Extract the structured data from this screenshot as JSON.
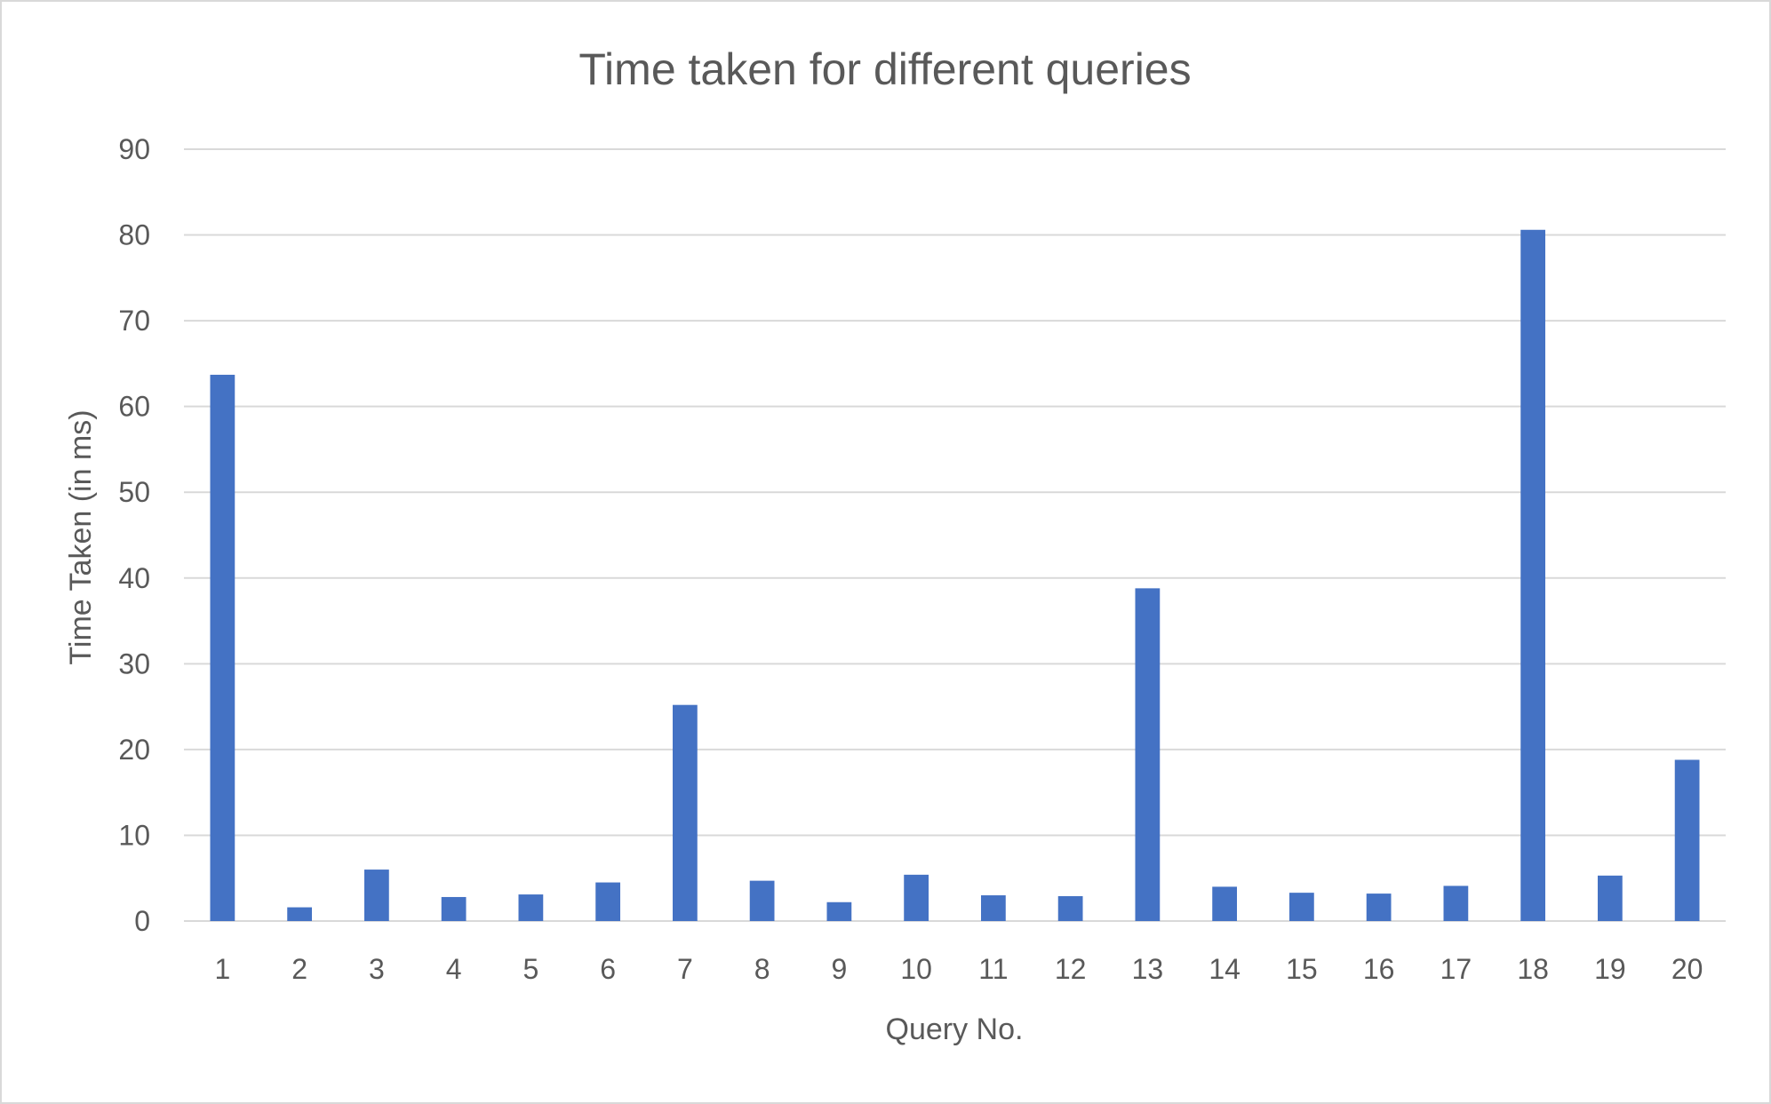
{
  "chart_data": {
    "type": "bar",
    "title": "Time taken for different queries",
    "xlabel": "Query No.",
    "ylabel": "Time Taken (in ms)",
    "categories": [
      "1",
      "2",
      "3",
      "4",
      "5",
      "6",
      "7",
      "8",
      "9",
      "10",
      "11",
      "12",
      "13",
      "14",
      "15",
      "16",
      "17",
      "18",
      "19",
      "20"
    ],
    "values": [
      63.7,
      1.6,
      6.0,
      2.8,
      3.1,
      4.5,
      25.2,
      4.7,
      2.2,
      5.4,
      3.0,
      2.9,
      38.8,
      4.0,
      3.3,
      3.2,
      4.1,
      80.6,
      5.3,
      18.8
    ],
    "ylim": [
      0,
      90
    ],
    "yticks": [
      0,
      10,
      20,
      30,
      40,
      50,
      60,
      70,
      80,
      90
    ],
    "grid": true,
    "legend": "none",
    "bar_color": "#4472c4"
  }
}
